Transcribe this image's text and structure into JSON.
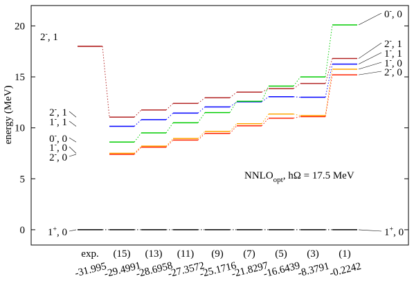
{
  "chart_data": {
    "type": "level-scheme",
    "ylabel": "energy (MeV)",
    "ylim": [
      -1.5,
      22
    ],
    "yticks": [
      0,
      5,
      10,
      15,
      20
    ],
    "annotation": {
      "base": "NNLO",
      "sub": "opt",
      "rest": ", hΩ = 17.5 MeV"
    },
    "columns": [
      {
        "top": "exp.",
        "bottom": "-31.995"
      },
      {
        "top": "(15)",
        "bottom": "-29.4991"
      },
      {
        "top": "(13)",
        "bottom": "-28.6958"
      },
      {
        "top": "(11)",
        "bottom": "-27.3572"
      },
      {
        "top": "(9)",
        "bottom": "-25.1716"
      },
      {
        "top": "(7)",
        "bottom": "-21.8297"
      },
      {
        "top": "(5)",
        "bottom": "-16.6439"
      },
      {
        "top": "(3)",
        "bottom": "-8.3791"
      },
      {
        "top": "(1)",
        "bottom": "-0.2242"
      }
    ],
    "series": [
      {
        "key": "1p0",
        "color": "#000000",
        "values": [
          0,
          0,
          0,
          0,
          0,
          0,
          0,
          0,
          0
        ]
      },
      {
        "key": "2m1",
        "color": "#b22222",
        "values": [
          18.0,
          11.05,
          11.75,
          12.4,
          12.95,
          13.5,
          13.85,
          14.35,
          16.8
        ]
      },
      {
        "key": "1m1",
        "color": "#0000ff",
        "values": [
          null,
          10.15,
          10.8,
          11.45,
          12.05,
          12.55,
          13.05,
          13.0,
          16.25
        ]
      },
      {
        "key": "0m0",
        "color": "#00cc00",
        "values": [
          null,
          8.6,
          9.5,
          10.5,
          11.5,
          12.6,
          14.1,
          15.0,
          20.1
        ]
      },
      {
        "key": "1m0",
        "color": "#ffa500",
        "values": [
          null,
          7.5,
          8.2,
          8.95,
          9.65,
          10.4,
          11.35,
          11.2,
          15.75
        ]
      },
      {
        "key": "2m0",
        "color": "#ff2200",
        "values": [
          null,
          7.4,
          8.1,
          8.8,
          9.45,
          10.2,
          10.95,
          11.1,
          15.2
        ]
      }
    ],
    "left_labels": [
      {
        "j": "2",
        "p": "-",
        "t": "1",
        "color": "#b22222",
        "level": 18.0,
        "col": 0
      },
      {
        "j": "2",
        "p": "-",
        "t": "1",
        "color": "#b22222",
        "level": 11.05,
        "col": 1
      },
      {
        "j": "1",
        "p": "-",
        "t": "1",
        "color": "#0000ff",
        "level": 10.15,
        "col": 1
      },
      {
        "j": "0",
        "p": "-",
        "t": "0",
        "color": "#00cc00",
        "level": 8.6,
        "col": 1
      },
      {
        "j": "1",
        "p": "-",
        "t": "0",
        "color": "#ffa500",
        "level": 7.5,
        "col": 1
      },
      {
        "j": "2",
        "p": "-",
        "t": "0",
        "color": "#ff2200",
        "level": 7.4,
        "col": 1
      },
      {
        "j": "1",
        "p": "+",
        "t": "0",
        "color": "#000000",
        "level": 0,
        "col": 1
      }
    ],
    "right_labels": [
      {
        "j": "0",
        "p": "-",
        "t": "0",
        "color": "#00cc00",
        "level": 20.1
      },
      {
        "j": "2",
        "p": "-",
        "t": "1",
        "color": "#b22222",
        "level": 16.8
      },
      {
        "j": "1",
        "p": "-",
        "t": "1",
        "color": "#0000ff",
        "level": 16.25
      },
      {
        "j": "1",
        "p": "-",
        "t": "0",
        "color": "#ffa500",
        "level": 15.75
      },
      {
        "j": "2",
        "p": "-",
        "t": "0",
        "color": "#ff2200",
        "level": 15.2
      },
      {
        "j": "1",
        "p": "+",
        "t": "0",
        "color": "#000000",
        "level": 0
      }
    ]
  }
}
